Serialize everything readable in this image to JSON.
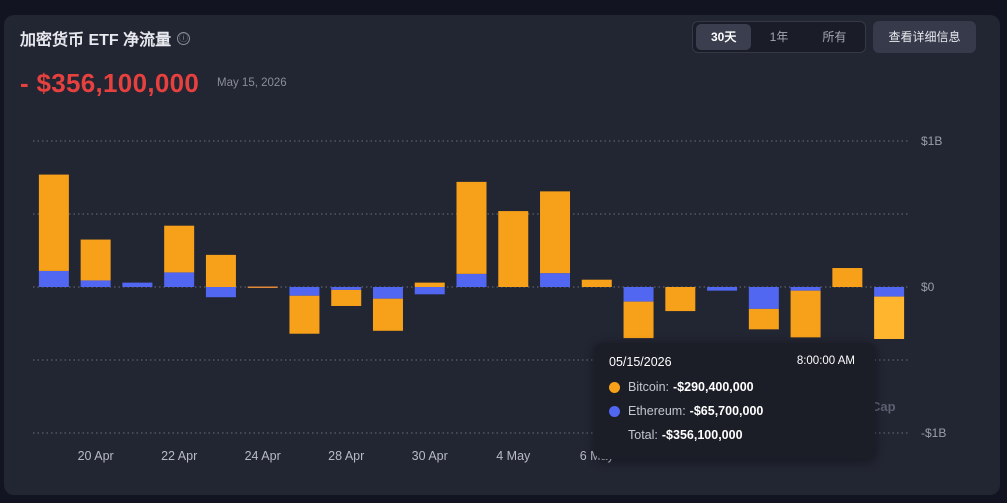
{
  "header": {
    "title": "加密货币 ETF 净流量",
    "info_icon": "ⓘ",
    "ranges": [
      "30天",
      "1年",
      "所有"
    ],
    "active_range": "30天",
    "detail_button": "查看详细信息"
  },
  "summary": {
    "value": "- $356,100,000",
    "date": "May 15, 2026"
  },
  "colors": {
    "bitcoin": "#f7a11a",
    "ethereum": "#5167f2",
    "selected_bitcoin": "#ffb52e",
    "negative": "#e6413e"
  },
  "chart_data": {
    "type": "bar",
    "stacked": true,
    "y_ticks": [
      {
        "label": "$1B",
        "value": 1000
      },
      {
        "label": "$0",
        "value": 0
      },
      {
        "label": "-$1B",
        "value": -1000
      }
    ],
    "ylim": [
      -1000,
      1000
    ],
    "grid": true,
    "x_tick_labels": [
      {
        "label": "20 Apr",
        "index": 1
      },
      {
        "label": "22 Apr",
        "index": 3
      },
      {
        "label": "24 Apr",
        "index": 5
      },
      {
        "label": "28 Apr",
        "index": 7
      },
      {
        "label": "30 Apr",
        "index": 9
      },
      {
        "label": "4 May",
        "index": 11
      },
      {
        "label": "6 May",
        "index": 13
      }
    ],
    "units": "$M",
    "series": [
      {
        "name": "Bitcoin",
        "values": [
          660,
          280,
          0,
          320,
          220,
          0,
          -260,
          -110,
          -220,
          30,
          630,
          520,
          560,
          50,
          -250,
          -165,
          0,
          -140,
          -320,
          130,
          -290.4
        ]
      },
      {
        "name": "Ethereum",
        "values": [
          110,
          45,
          30,
          100,
          -70,
          0,
          -60,
          -20,
          -80,
          -50,
          90,
          0,
          95,
          0,
          -100,
          0,
          -25,
          -150,
          -25,
          0,
          -65.7
        ]
      }
    ],
    "selected_index": 20,
    "watermark": "Cap"
  },
  "tooltip": {
    "date": "05/15/2026",
    "time": "8:00:00 AM",
    "rows": [
      {
        "label": "Bitcoin:",
        "value": "-$290,400,000"
      },
      {
        "label": "Ethereum:",
        "value": "-$65,700,000"
      },
      {
        "label": "Total:",
        "value": "-$356,100,000"
      }
    ]
  }
}
